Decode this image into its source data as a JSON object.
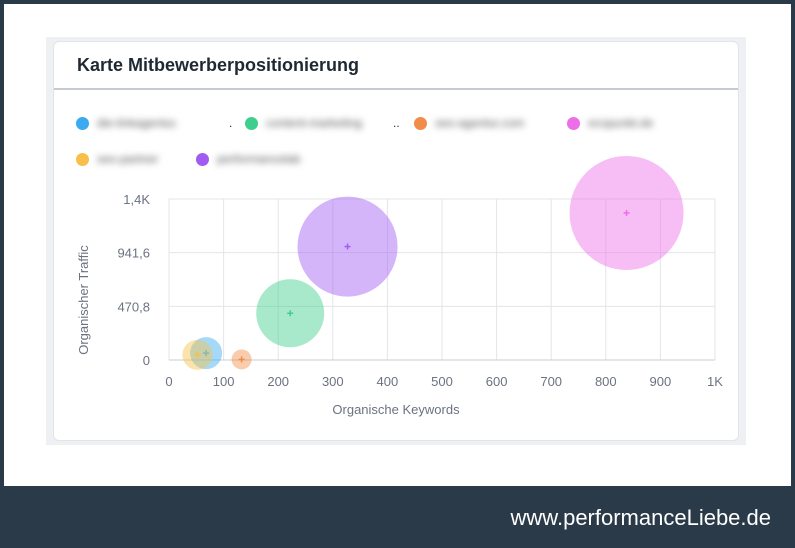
{
  "card": {
    "title": "Karte Mitbewerberpositionierung"
  },
  "legend": [
    {
      "label": "die-linkagentur.",
      "suffix": ".",
      "color": "#3aabf0"
    },
    {
      "label": "content-marketing",
      "suffix": "..",
      "color": "#3ecf8e"
    },
    {
      "label": "seo-agentur.com",
      "suffix": "",
      "color": "#f08d49"
    },
    {
      "label": "ecopunkt.de",
      "suffix": "",
      "color": "#ee6ee8"
    },
    {
      "label": "seo-partner",
      "suffix": "",
      "color": "#f7c04a"
    },
    {
      "label": "performancelab",
      "suffix": "",
      "color": "#a25bf2"
    }
  ],
  "chart_data": {
    "type": "scatter",
    "xlabel": "Organische Keywords",
    "ylabel": "Organischer Traffic",
    "xlim": [
      0,
      1000
    ],
    "ylim": [
      0,
      1412.4
    ],
    "x_ticks": [
      0,
      100,
      200,
      300,
      400,
      500,
      600,
      700,
      800,
      900,
      1000
    ],
    "x_tick_labels": [
      "0",
      "100",
      "200",
      "300",
      "400",
      "500",
      "600",
      "700",
      "800",
      "900",
      "1K"
    ],
    "y_ticks": [
      0,
      470.8,
      941.6,
      1412.4
    ],
    "y_tick_labels": [
      "0",
      "470,8",
      "941,6",
      "1,4K"
    ],
    "grid": true,
    "legend_position": "top",
    "series": [
      {
        "name": "die-linkagentur.",
        "color": "#3aabf0",
        "x": 68,
        "y": 60,
        "size": 16
      },
      {
        "name": "content-marketing",
        "color": "#3ecf8e",
        "x": 222,
        "y": 410,
        "size": 34
      },
      {
        "name": "seo-agentur.com",
        "color": "#f08d49",
        "x": 133,
        "y": 5,
        "size": 10
      },
      {
        "name": "ecopunkt.de",
        "color": "#ee6ee8",
        "x": 838,
        "y": 1290,
        "size": 57
      },
      {
        "name": "seo-partner",
        "color": "#f7c04a",
        "x": 52,
        "y": 45,
        "size": 15
      },
      {
        "name": "performancelab",
        "color": "#a25bf2",
        "x": 327,
        "y": 995,
        "size": 50
      }
    ]
  },
  "footer": {
    "text": "www.performanceLiebe.de"
  }
}
